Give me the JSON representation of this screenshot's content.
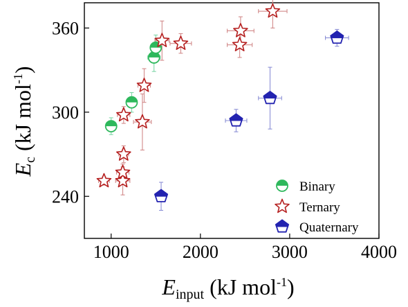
{
  "chart_data": {
    "type": "scatter",
    "xlabel": {
      "main": "E",
      "sub": "input",
      "unit": " (kJ mol",
      "sup": "-1",
      "close": ")"
    },
    "ylabel": {
      "main": "E",
      "sub": "c",
      "unit": " (kJ mol",
      "sup": "-1",
      "close": ")"
    },
    "xlim": [
      700,
      4000
    ],
    "ylim": [
      210,
      378
    ],
    "xticks": [
      1000,
      2000,
      3000,
      4000
    ],
    "yticks": [
      240,
      300,
      360
    ],
    "legend_position": "bottom-right",
    "series": [
      {
        "name": "Binary",
        "marker": "circle-half",
        "color": "#2eb85c",
        "error_color": "#7fd6a8",
        "points": [
          {
            "x": 1000,
            "y": 290,
            "xerr": 60,
            "yerr": 6
          },
          {
            "x": 1230,
            "y": 307,
            "xerr": 50,
            "yerr": 7
          },
          {
            "x": 1480,
            "y": 339,
            "xerr": 70,
            "yerr": 10
          },
          {
            "x": 1500,
            "y": 346,
            "xerr": 55,
            "yerr": 9
          }
        ]
      },
      {
        "name": "Ternary",
        "marker": "star",
        "color": "#b51f1f",
        "error_color": "#d28a8a",
        "points": [
          {
            "x": 920,
            "y": 251,
            "xerr": 60,
            "yerr": 3
          },
          {
            "x": 1130,
            "y": 251,
            "xerr": 80,
            "yerr": 10
          },
          {
            "x": 1130,
            "y": 257,
            "xerr": 70,
            "yerr": 6
          },
          {
            "x": 1140,
            "y": 270,
            "xerr": 55,
            "yerr": 6
          },
          {
            "x": 1140,
            "y": 298,
            "xerr": 70,
            "yerr": 6
          },
          {
            "x": 1350,
            "y": 293,
            "xerr": 100,
            "yerr": 20
          },
          {
            "x": 1370,
            "y": 319,
            "xerr": 70,
            "yerr": 12
          },
          {
            "x": 1570,
            "y": 351,
            "xerr": 80,
            "yerr": 14
          },
          {
            "x": 1780,
            "y": 349,
            "xerr": 120,
            "yerr": 7
          },
          {
            "x": 2440,
            "y": 348,
            "xerr": 140,
            "yerr": 9
          },
          {
            "x": 2450,
            "y": 358,
            "xerr": 150,
            "yerr": 10
          },
          {
            "x": 2810,
            "y": 372,
            "xerr": 160,
            "yerr": 12
          }
        ]
      },
      {
        "name": "Quaternary",
        "marker": "pentagon-half",
        "color": "#2323b0",
        "error_color": "#8b8fd6",
        "points": [
          {
            "x": 1560,
            "y": 240,
            "xerr": 60,
            "yerr": 10
          },
          {
            "x": 2400,
            "y": 294,
            "xerr": 120,
            "yerr": 8
          },
          {
            "x": 2780,
            "y": 310,
            "xerr": 130,
            "yerr": 22
          },
          {
            "x": 3530,
            "y": 353,
            "xerr": 130,
            "yerr": 6
          }
        ]
      }
    ]
  }
}
